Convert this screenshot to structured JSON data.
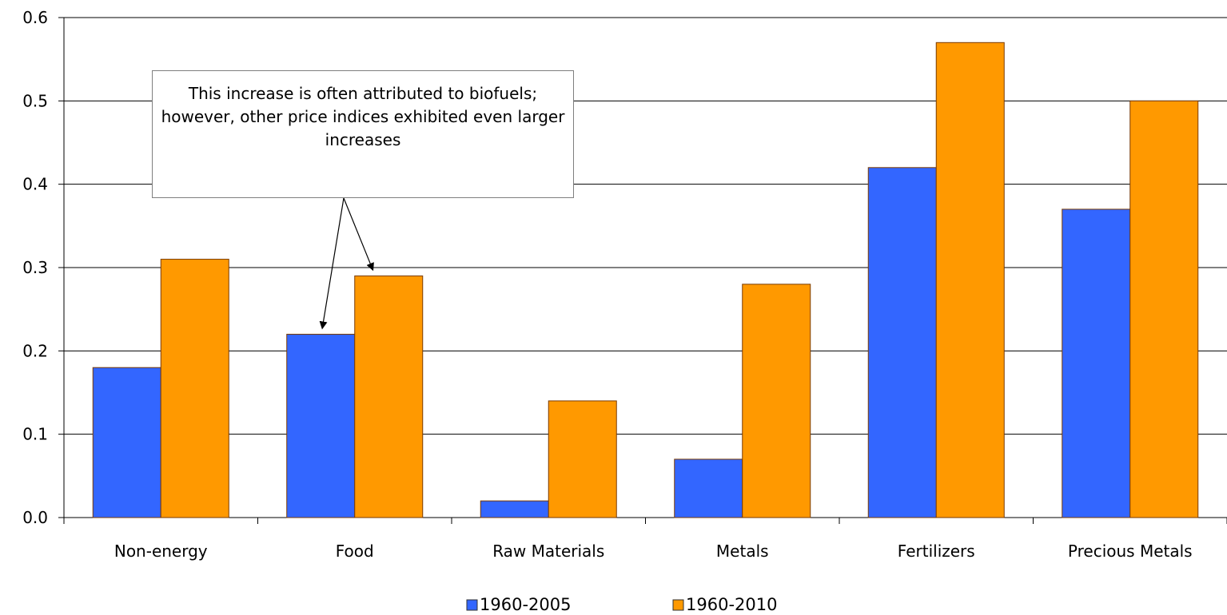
{
  "chart_data": {
    "type": "bar",
    "categories": [
      "Non-energy",
      "Food",
      "Raw Materials",
      "Metals",
      "Fertilizers",
      "Precious Metals"
    ],
    "series": [
      {
        "name": "1960-2005",
        "color": "#3366ff",
        "values": [
          0.18,
          0.22,
          0.02,
          0.07,
          0.42,
          0.37
        ]
      },
      {
        "name": "1960-2010",
        "color": "#ff9900",
        "values": [
          0.31,
          0.29,
          0.14,
          0.28,
          0.57,
          0.5
        ]
      }
    ],
    "yticks": [
      "0.0",
      "0.1",
      "0.2",
      "0.3",
      "0.4",
      "0.5",
      "0.6"
    ],
    "ylim": [
      0,
      0.6
    ],
    "grid": true,
    "legend": "bottom",
    "annotation": "This increase is often attributed to biofuels; however, other price indices exhibited even larger increases",
    "annotation_targets": [
      "Food"
    ]
  }
}
